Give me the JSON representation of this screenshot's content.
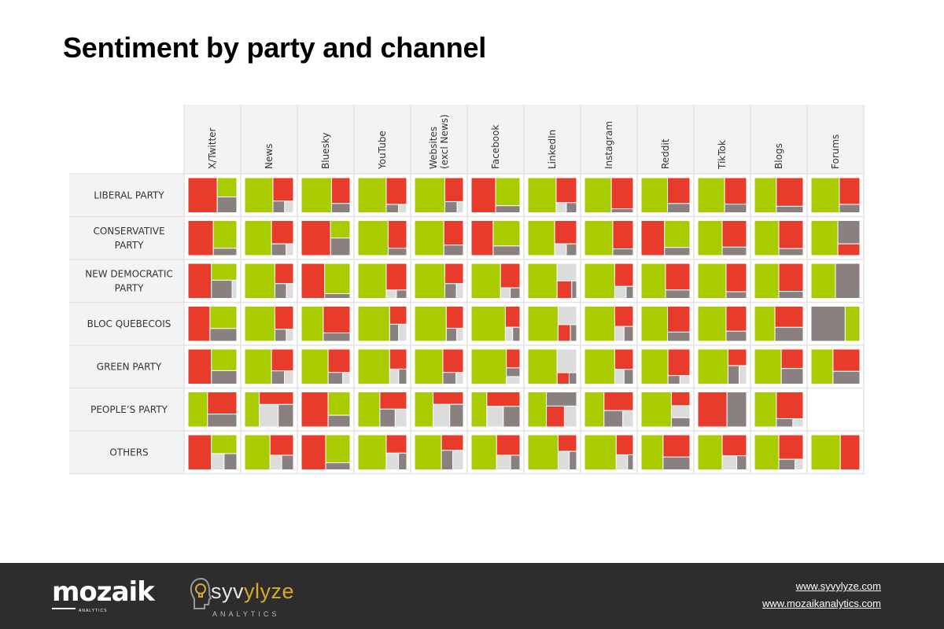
{
  "title": "Sentiment by party and channel",
  "colors": {
    "positive": "#a8cc00",
    "negative": "#e73c2c",
    "neutral": "#dcdcdc",
    "other": "#8a8080",
    "row_header_bg": "#f3f3f3",
    "grid": "#e4e4e4",
    "footer_bg": "#2d2d2d",
    "accent": "#d9a92c"
  },
  "chart_data": {
    "type": "heatmap",
    "encoding": "per-cell treemap of sentiment shares",
    "columns": [
      "X/Twitter",
      "News",
      "Bluesky",
      "YouTube",
      "Websites (excl News)",
      "Facebook",
      "LinkedIn",
      "Instagram",
      "Reddit",
      "TikTok",
      "Blogs",
      "Forums"
    ],
    "rows": [
      "LIBERAL PARTY",
      "CONSERVATIVE PARTY",
      "NEW DEMOCRATIC PARTY",
      "BLOC QUEBECOIS",
      "GREEN PARTY",
      "PEOPLE'S PARTY",
      "OTHERS"
    ],
    "segment_order": [
      "positive",
      "negative",
      "neutral",
      "other"
    ],
    "cells": [
      [
        [
          0.22,
          0.6,
          0,
          0.18
        ],
        [
          0.58,
          0.28,
          0.06,
          0.08
        ],
        [
          0.62,
          0.28,
          0,
          0.1
        ],
        [
          0.58,
          0.32,
          0.04,
          0.06
        ],
        [
          0.62,
          0.26,
          0.04,
          0.08
        ],
        [
          0.4,
          0.5,
          0,
          0.1
        ],
        [
          0.58,
          0.3,
          0.06,
          0.06
        ],
        [
          0.55,
          0.4,
          0,
          0.05
        ],
        [
          0.54,
          0.34,
          0,
          0.12
        ],
        [
          0.55,
          0.34,
          0,
          0.11
        ],
        [
          0.45,
          0.45,
          0,
          0.1
        ],
        [
          0.58,
          0.32,
          0,
          0.1
        ]
      ],
      [
        [
          0.38,
          0.52,
          0,
          0.1
        ],
        [
          0.55,
          0.3,
          0.05,
          0.1
        ],
        [
          0.2,
          0.6,
          0,
          0.2
        ],
        [
          0.62,
          0.3,
          0,
          0.08
        ],
        [
          0.6,
          0.28,
          0,
          0.12
        ],
        [
          0.4,
          0.45,
          0,
          0.15
        ],
        [
          0.55,
          0.3,
          0.08,
          0.07
        ],
        [
          0.58,
          0.34,
          0,
          0.08
        ],
        [
          0.4,
          0.48,
          0,
          0.12
        ],
        [
          0.5,
          0.38,
          0,
          0.12
        ],
        [
          0.5,
          0.4,
          0,
          0.1
        ],
        [
          0.55,
          0.15,
          0,
          0.3
        ]
      ],
      [
        [
          0.25,
          0.48,
          0.05,
          0.22
        ],
        [
          0.62,
          0.22,
          0.06,
          0.1
        ],
        [
          0.45,
          0.48,
          0,
          0.07
        ],
        [
          0.58,
          0.32,
          0.05,
          0.05
        ],
        [
          0.62,
          0.22,
          0.06,
          0.1
        ],
        [
          0.6,
          0.28,
          0.06,
          0.06
        ],
        [
          0.6,
          0.15,
          0.2,
          0.05
        ],
        [
          0.62,
          0.25,
          0.08,
          0.05
        ],
        [
          0.5,
          0.38,
          0,
          0.12
        ],
        [
          0.58,
          0.34,
          0,
          0.08
        ],
        [
          0.5,
          0.4,
          0,
          0.1
        ],
        [
          0.5,
          0,
          0,
          0.5
        ]
      ],
      [
        [
          0.35,
          0.45,
          0,
          0.2
        ],
        [
          0.62,
          0.25,
          0.05,
          0.08
        ],
        [
          0.45,
          0.42,
          0,
          0.13
        ],
        [
          0.65,
          0.18,
          0.08,
          0.09
        ],
        [
          0.65,
          0.22,
          0.05,
          0.08
        ],
        [
          0.7,
          0.18,
          0.06,
          0.06
        ],
        [
          0.62,
          0.12,
          0.2,
          0.06
        ],
        [
          0.62,
          0.22,
          0.08,
          0.08
        ],
        [
          0.54,
          0.34,
          0,
          0.12
        ],
        [
          0.58,
          0.3,
          0,
          0.12
        ],
        [
          0.42,
          0.35,
          0,
          0.23
        ],
        [
          0.3,
          0,
          0,
          0.7
        ]
      ],
      [
        [
          0.32,
          0.48,
          0,
          0.2
        ],
        [
          0.55,
          0.28,
          0.07,
          0.1
        ],
        [
          0.55,
          0.3,
          0.05,
          0.1
        ],
        [
          0.65,
          0.2,
          0.08,
          0.07
        ],
        [
          0.58,
          0.28,
          0.05,
          0.09
        ],
        [
          0.72,
          0.15,
          0.06,
          0.07
        ],
        [
          0.6,
          0.08,
          0.27,
          0.05
        ],
        [
          0.62,
          0.22,
          0.08,
          0.08
        ],
        [
          0.55,
          0.34,
          0.05,
          0.06
        ],
        [
          0.62,
          0.18,
          0.08,
          0.12
        ],
        [
          0.55,
          0.25,
          0,
          0.2
        ],
        [
          0.45,
          0.35,
          0,
          0.2
        ]
      ],
      [
        [
          0.4,
          0.38,
          0,
          0.22
        ],
        [
          0.3,
          0.25,
          0.25,
          0.2
        ],
        [
          0.3,
          0.55,
          0,
          0.15
        ],
        [
          0.45,
          0.27,
          0.12,
          0.16
        ],
        [
          0.38,
          0.22,
          0.22,
          0.18
        ],
        [
          0.32,
          0.28,
          0.2,
          0.2
        ],
        [
          0.38,
          0.22,
          0.15,
          0.25
        ],
        [
          0.4,
          0.32,
          0.1,
          0.18
        ],
        [
          0.62,
          0.15,
          0.13,
          0.1
        ],
        [
          0,
          0.6,
          0,
          0.4
        ],
        [
          0.45,
          0.42,
          0.05,
          0.08
        ],
        [
          0,
          0,
          0,
          0
        ]
      ],
      [
        [
          0.28,
          0.48,
          0.12,
          0.12
        ],
        [
          0.52,
          0.28,
          0.1,
          0.1
        ],
        [
          0.4,
          0.5,
          0,
          0.1
        ],
        [
          0.58,
          0.22,
          0.12,
          0.08
        ],
        [
          0.55,
          0.2,
          0.12,
          0.13
        ],
        [
          0.52,
          0.28,
          0.12,
          0.08
        ],
        [
          0.62,
          0.18,
          0.12,
          0.08
        ],
        [
          0.65,
          0.2,
          0.1,
          0.05
        ],
        [
          0.45,
          0.35,
          0,
          0.2
        ],
        [
          0.5,
          0.3,
          0.12,
          0.08
        ],
        [
          0.5,
          0.35,
          0.05,
          0.1
        ],
        [
          0.6,
          0.4,
          0,
          0
        ]
      ]
    ]
  },
  "footer": {
    "brand_left": "mozaik",
    "brand_left_sub": "ANALYTICS",
    "brand_mid_part1": "syv",
    "brand_mid_part2": "ylyze",
    "brand_mid_sub": "ANALYTICS",
    "link1": "www.syvylyze.com",
    "link2": "www.mozaikanalytics.com"
  }
}
